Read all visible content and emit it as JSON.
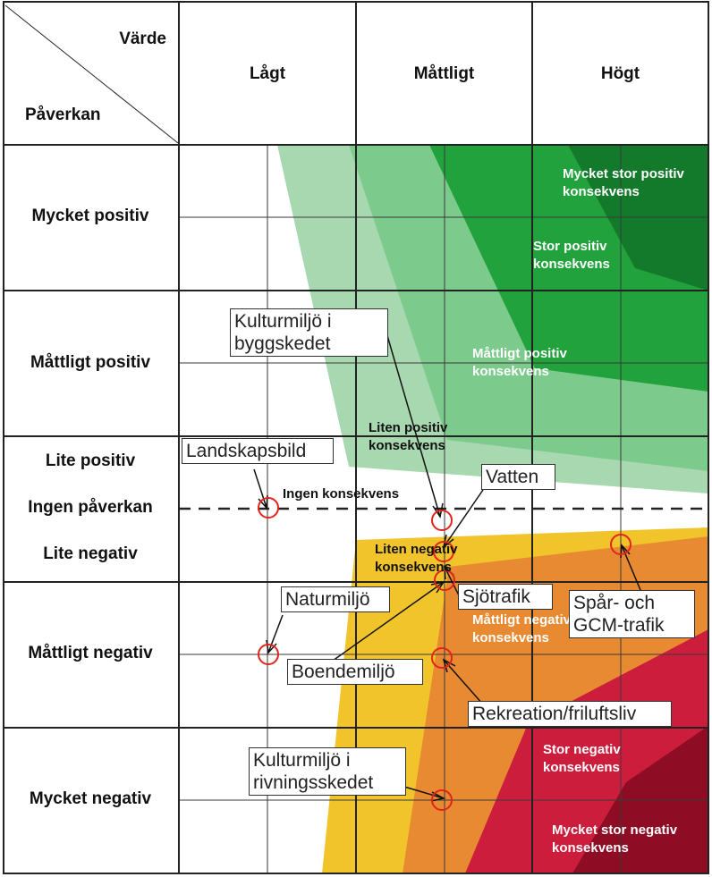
{
  "header": {
    "corner_top": "Värde",
    "corner_bottom": "Påverkan",
    "columns": [
      "Lågt",
      "Måttligt",
      "Högt"
    ]
  },
  "rows": [
    "Mycket positiv",
    "Måttligt positiv",
    "Lite positiv",
    "Ingen påverkan",
    "Lite negativ",
    "Måttligt negativ",
    "Mycket negativ"
  ],
  "zones": {
    "very_large_positive": "Mycket stor positiv\nkonsekvens",
    "large_positive": "Stor positiv\nkonsekvens",
    "moderate_positive": "Måttligt positiv\nkonsekvens",
    "small_positive": "Liten positiv\nkonsekvens",
    "none": "Ingen konsekvens",
    "small_negative": "Liten negativ\nkonsekvens",
    "moderate_negative": "Måttligt negativ\nkonsekvens",
    "large_negative": "Stor negativ\nkonsekvens",
    "very_large_negative": "Mycket stor negativ\nkonsekvens"
  },
  "callouts": {
    "kulturmiljo_bygg": "Kulturmiljö i\nbyggskedet",
    "landskapsbild": "Landskapsbild",
    "vatten": "Vatten",
    "naturmiljo": "Naturmiljö",
    "sjotrafik": "Sjötrafik",
    "spar_gcm": "Spår- och\nGCM-trafik",
    "boendemiljo": "Boendemiljö",
    "rekreation": "Rekreation/friluftsliv",
    "kulturmiljo_rivning": "Kulturmiljö i\nrivningsskedet"
  },
  "colors": {
    "very_light_green": "#a8d8b0",
    "light_green": "#7ccb8c",
    "green": "#22a23c",
    "dark_green": "#127a2a",
    "yellow": "#f2c42c",
    "orange": "#e88a32",
    "red": "#cc1d3c",
    "dark_red": "#8e0c24",
    "marker": "#e2231a"
  }
}
